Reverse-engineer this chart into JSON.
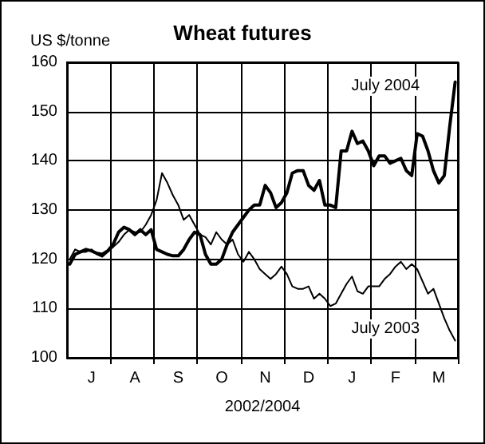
{
  "chart_data": {
    "type": "line",
    "title": "Wheat futures",
    "ylabel": "US $/tonne",
    "xlabel": "2002/2004",
    "categories": [
      null,
      null,
      null,
      null,
      "J",
      null,
      null,
      null,
      null,
      null,
      null,
      null,
      "A",
      null,
      null,
      null,
      null,
      null,
      null,
      null,
      "S",
      null,
      null,
      null,
      null,
      null,
      null,
      null,
      "O",
      null,
      null,
      null,
      null,
      null,
      null,
      null,
      "N",
      null,
      null,
      null,
      null,
      null,
      null,
      null,
      "D",
      null,
      null,
      null,
      null,
      null,
      null,
      null,
      "J",
      null,
      null,
      null,
      null,
      null,
      null,
      null,
      "F",
      null,
      null,
      null,
      null,
      null,
      null,
      null,
      "M",
      null,
      null,
      null
    ],
    "ylim": [
      100,
      160
    ],
    "yticks": [
      100,
      110,
      120,
      130,
      140,
      150,
      160
    ],
    "grid": true,
    "legend": false,
    "marker": "none",
    "line_style": "solid",
    "series": [
      {
        "name": "July 2004",
        "color": "#000000",
        "values": [
          119,
          121,
          121.5,
          122,
          121.7,
          121.2,
          121,
          121.7,
          123,
          125.5,
          126.5,
          126,
          125,
          126,
          125,
          126,
          122,
          121.5,
          121,
          120.7,
          120.7,
          122,
          124,
          125.5,
          125,
          121,
          119,
          119,
          120,
          123,
          125.5,
          127,
          128.5,
          130,
          131,
          131,
          135,
          133.5,
          130.5,
          131.5,
          133.5,
          137.5,
          138,
          138,
          135,
          134,
          136,
          131,
          131,
          130.5,
          142,
          142,
          146,
          143.5,
          144,
          142,
          139,
          141,
          141,
          139.5,
          140,
          140.5,
          138,
          137,
          145.5,
          145,
          142,
          138,
          135.5,
          137,
          147,
          156
        ]
      },
      {
        "name": "July 2003",
        "color": "#000000",
        "values": [
          120,
          122,
          121.5,
          121.5,
          122,
          121,
          120.5,
          121.5,
          122.5,
          123.5,
          125,
          126,
          125.5,
          125.5,
          127,
          129,
          132,
          137.5,
          135.5,
          133,
          131,
          128,
          129,
          127,
          125,
          124.5,
          123,
          125.5,
          124,
          123,
          124,
          121,
          119.5,
          121.5,
          120,
          118,
          117,
          116,
          117,
          118.5,
          117,
          114.5,
          114,
          114,
          114.5,
          112,
          113,
          112,
          110.5,
          111,
          113,
          115,
          116.5,
          113.5,
          113,
          114.5,
          114.5,
          114.5,
          116,
          117,
          118.5,
          119.5,
          118,
          119,
          118,
          115.5,
          113,
          114,
          111,
          108,
          105.5,
          103.5
        ]
      }
    ]
  }
}
